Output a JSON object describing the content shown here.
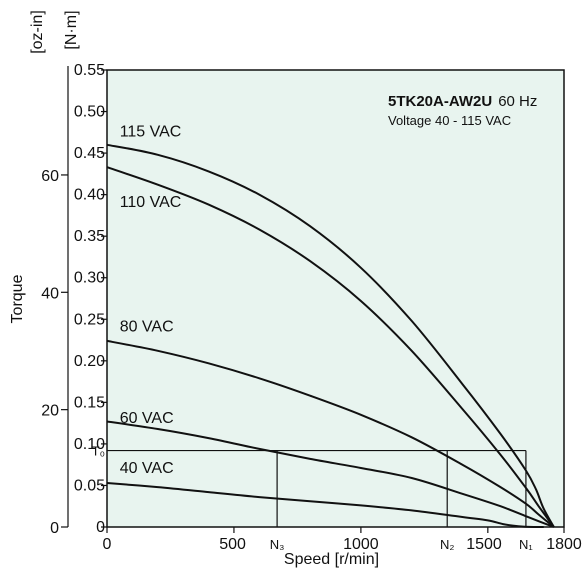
{
  "chart_data": {
    "type": "line",
    "title": "5TK20A-AW2U",
    "title_suffix": "60 Hz",
    "subtitle": "Voltage 40 - 115 VAC",
    "xlabel": "Speed [r/min]",
    "ylabel": "Torque",
    "y_unit_left": "[oz-in]",
    "y_unit_right": "[N·m]",
    "xlim": [
      0,
      1800
    ],
    "ylim_nm": [
      0,
      0.55
    ],
    "ylim_ozin": [
      0,
      77.9
    ],
    "grid": false,
    "background_color": "#e8f4ef",
    "x_ticks": [
      {
        "value": 0,
        "label": "0"
      },
      {
        "value": 500,
        "label": "500"
      },
      {
        "value": 1000,
        "label": "1000"
      },
      {
        "value": 1500,
        "label": "1500"
      },
      {
        "value": 1800,
        "label": "1800"
      }
    ],
    "y_ticks_nm": [
      {
        "value": 0,
        "label": "0"
      },
      {
        "value": 0.05,
        "label": "0.05"
      },
      {
        "value": 0.1,
        "label": "0.10"
      },
      {
        "value": 0.15,
        "label": "0.15"
      },
      {
        "value": 0.2,
        "label": "0.20"
      },
      {
        "value": 0.25,
        "label": "0.25"
      },
      {
        "value": 0.3,
        "label": "0.30"
      },
      {
        "value": 0.35,
        "label": "0.35"
      },
      {
        "value": 0.4,
        "label": "0.40"
      },
      {
        "value": 0.45,
        "label": "0.45"
      },
      {
        "value": 0.5,
        "label": "0.50"
      },
      {
        "value": 0.55,
        "label": "0.55"
      }
    ],
    "y_ticks_ozin": [
      {
        "value": 0,
        "label": "0"
      },
      {
        "value": 20,
        "label": "20"
      },
      {
        "value": 40,
        "label": "40"
      },
      {
        "value": 60,
        "label": "60"
      }
    ],
    "series": [
      {
        "name": "115 VAC",
        "label_at": [
          50,
          0.47
        ],
        "x": [
          0,
          200,
          400,
          600,
          800,
          1000,
          1200,
          1400,
          1550,
          1650,
          1690,
          1720,
          1760
        ],
        "y": [
          0.46,
          0.448,
          0.428,
          0.4,
          0.362,
          0.312,
          0.248,
          0.172,
          0.112,
          0.068,
          0.045,
          0.022,
          0
        ]
      },
      {
        "name": "110 VAC",
        "label_at": [
          50,
          0.385
        ],
        "x": [
          0,
          200,
          400,
          600,
          800,
          1000,
          1200,
          1400,
          1550,
          1650,
          1700,
          1760
        ],
        "y": [
          0.433,
          0.412,
          0.388,
          0.358,
          0.32,
          0.272,
          0.212,
          0.142,
          0.087,
          0.047,
          0.025,
          0
        ]
      },
      {
        "name": "80 VAC",
        "label_at": [
          50,
          0.235
        ],
        "x": [
          0,
          200,
          400,
          600,
          800,
          1000,
          1200,
          1400,
          1550,
          1650,
          1700,
          1760
        ],
        "y": [
          0.224,
          0.212,
          0.197,
          0.179,
          0.158,
          0.135,
          0.108,
          0.075,
          0.048,
          0.028,
          0.015,
          0
        ]
      },
      {
        "name": "60 VAC",
        "label_at": [
          50,
          0.125
        ],
        "x": [
          0,
          200,
          400,
          600,
          800,
          1000,
          1200,
          1400,
          1550,
          1650,
          1700,
          1760
        ],
        "y": [
          0.127,
          0.118,
          0.107,
          0.094,
          0.082,
          0.071,
          0.059,
          0.04,
          0.025,
          0.013,
          0.007,
          0
        ]
      },
      {
        "name": "40 VAC",
        "label_at": [
          50,
          0.065
        ],
        "x": [
          0,
          200,
          400,
          600,
          800,
          1000,
          1200,
          1400,
          1500,
          1560,
          1620,
          1680,
          1720
        ],
        "y": [
          0.053,
          0.048,
          0.042,
          0.036,
          0.031,
          0.026,
          0.02,
          0.012,
          0.008,
          0.0035,
          0.001,
          0,
          0
        ]
      }
    ],
    "reference": {
      "torque_label": "T₀",
      "torque_value": 0.092,
      "speed_points": [
        {
          "label": "N₃",
          "value": 670
        },
        {
          "label": "N₂",
          "value": 1340
        },
        {
          "label": "N₁",
          "value": 1650
        }
      ]
    }
  }
}
